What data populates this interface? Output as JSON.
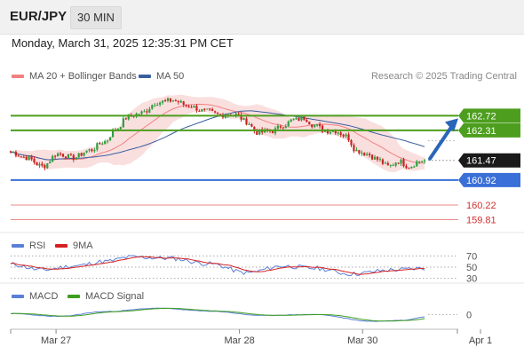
{
  "header": {
    "symbol": "EUR/JPY",
    "timeframe": "30 MIN",
    "datetime": "Monday, March 31, 2025 12:35:31 PM CET"
  },
  "credit": "Research © 2025 Trading Central",
  "colors": {
    "candle_up": "#2e9e3f",
    "candle_down": "#cc2222",
    "bollinger": "#f5b8b8",
    "ma20": "#f28080",
    "ma50": "#3a5fa0",
    "green_level": "#4d9e1e",
    "blue_level": "#3a6fd8",
    "red_level": "#e88a8a",
    "arrow": "#2a66b8",
    "rsi": "#5b7fd6",
    "rsi_ma": "#d62020",
    "macd": "#5b7fd6",
    "macd_signal": "#3e9e1e"
  },
  "chart_data": [
    {
      "panel": "price",
      "type": "candlestick",
      "legend": [
        {
          "name": "MA 20 + Bollinger Bands",
          "color": "#f28080"
        },
        {
          "name": "MA 50",
          "color": "#3a5fa0"
        }
      ],
      "ylim": [
        159.45,
        163.6
      ],
      "last_price": "161.47",
      "levels": [
        {
          "value": 162.72,
          "label": "162.72",
          "kind": "resistance",
          "color": "#4d9e1e"
        },
        {
          "value": 162.31,
          "label": "162.31",
          "kind": "resistance",
          "color": "#4d9e1e"
        },
        {
          "value": 160.92,
          "label": "160.92",
          "kind": "pivot",
          "color": "#3a6fd8"
        },
        {
          "value": 160.22,
          "label": "160.22",
          "kind": "support",
          "color": "#e88a8a"
        },
        {
          "value": 159.81,
          "label": "159.81",
          "kind": "support",
          "color": "#e88a8a"
        }
      ],
      "anchors": [
        {
          "i": 0,
          "v": 161.7
        },
        {
          "i": 6,
          "v": 161.55
        },
        {
          "i": 12,
          "v": 161.3
        },
        {
          "i": 18,
          "v": 161.65
        },
        {
          "i": 24,
          "v": 161.55
        },
        {
          "i": 30,
          "v": 161.75
        },
        {
          "i": 36,
          "v": 162.0
        },
        {
          "i": 40,
          "v": 162.35
        },
        {
          "i": 45,
          "v": 162.7
        },
        {
          "i": 50,
          "v": 162.8
        },
        {
          "i": 56,
          "v": 163.1
        },
        {
          "i": 62,
          "v": 163.15
        },
        {
          "i": 68,
          "v": 163.0
        },
        {
          "i": 74,
          "v": 162.85
        },
        {
          "i": 80,
          "v": 162.75
        },
        {
          "i": 86,
          "v": 162.75
        },
        {
          "i": 90,
          "v": 162.55
        },
        {
          "i": 94,
          "v": 162.25
        },
        {
          "i": 100,
          "v": 162.3
        },
        {
          "i": 104,
          "v": 162.45
        },
        {
          "i": 108,
          "v": 162.6
        },
        {
          "i": 112,
          "v": 162.65
        },
        {
          "i": 116,
          "v": 162.45
        },
        {
          "i": 120,
          "v": 162.3
        },
        {
          "i": 124,
          "v": 162.3
        },
        {
          "i": 128,
          "v": 162.15
        },
        {
          "i": 132,
          "v": 161.75
        },
        {
          "i": 136,
          "v": 161.65
        },
        {
          "i": 140,
          "v": 161.5
        },
        {
          "i": 144,
          "v": 161.3
        },
        {
          "i": 148,
          "v": 161.45
        },
        {
          "i": 152,
          "v": 161.3
        },
        {
          "i": 156,
          "v": 161.45
        },
        {
          "i": 158,
          "v": 161.47
        }
      ],
      "forecast": {
        "from": 161.47,
        "to": 162.72
      }
    },
    {
      "panel": "rsi",
      "type": "line",
      "legend": [
        {
          "name": "RSI",
          "color": "#5b7fd6"
        },
        {
          "name": "9MA",
          "color": "#d62020"
        }
      ],
      "ylim": [
        20,
        80
      ],
      "ticks": [
        {
          "value": 70,
          "label": "70"
        },
        {
          "value": 50,
          "label": "50"
        },
        {
          "value": 30,
          "label": "30"
        }
      ],
      "anchors": [
        {
          "i": 0,
          "v": 55
        },
        {
          "i": 12,
          "v": 45
        },
        {
          "i": 24,
          "v": 52
        },
        {
          "i": 36,
          "v": 60
        },
        {
          "i": 46,
          "v": 68
        },
        {
          "i": 60,
          "v": 66
        },
        {
          "i": 76,
          "v": 56
        },
        {
          "i": 90,
          "v": 40
        },
        {
          "i": 104,
          "v": 52
        },
        {
          "i": 116,
          "v": 48
        },
        {
          "i": 130,
          "v": 38
        },
        {
          "i": 146,
          "v": 45
        },
        {
          "i": 158,
          "v": 48
        }
      ]
    },
    {
      "panel": "macd",
      "type": "line",
      "legend": [
        {
          "name": "MACD",
          "color": "#5b7fd6"
        },
        {
          "name": "MACD Signal",
          "color": "#3e9e1e"
        }
      ],
      "ylim": [
        -0.25,
        0.3
      ],
      "ticks": [
        {
          "value": 0,
          "label": "0"
        }
      ],
      "anchors": [
        {
          "i": 0,
          "v": 0.02
        },
        {
          "i": 18,
          "v": -0.04
        },
        {
          "i": 36,
          "v": 0.06
        },
        {
          "i": 56,
          "v": 0.13
        },
        {
          "i": 76,
          "v": 0.07
        },
        {
          "i": 96,
          "v": -0.02
        },
        {
          "i": 116,
          "v": 0.0
        },
        {
          "i": 138,
          "v": -0.14
        },
        {
          "i": 150,
          "v": -0.12
        },
        {
          "i": 158,
          "v": -0.05
        }
      ]
    }
  ],
  "xaxis": {
    "ticks": [
      {
        "i": 18,
        "label": "Mar 27"
      },
      {
        "i": 88,
        "label": "Mar 28"
      },
      {
        "i": 135,
        "label": "Mar 30"
      },
      {
        "i": 180,
        "label": "Apr 1"
      }
    ]
  }
}
